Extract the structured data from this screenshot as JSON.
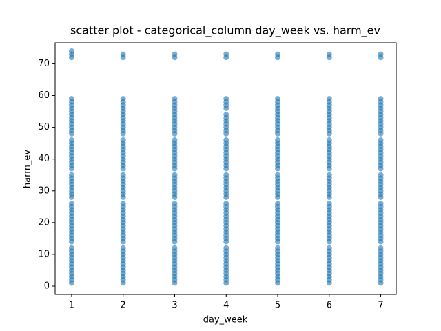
{
  "chart_data": {
    "type": "scatter",
    "title": "scatter plot - categorical_column day_week vs. harm_ev",
    "x_label": "day_week",
    "y_label": "harm_ev",
    "color": "#1f77b4",
    "xlim": [
      0.68,
      7.3
    ],
    "ylim": [
      -2.6,
      76.6
    ],
    "xticks": [
      1,
      2,
      3,
      4,
      5,
      6,
      7
    ],
    "yticks": [
      0,
      10,
      20,
      30,
      40,
      50,
      60,
      70
    ],
    "groups": [
      {
        "x": 1,
        "y": [
          1,
          2,
          3,
          4,
          5,
          6,
          7,
          8,
          9,
          10,
          11,
          12,
          14,
          15,
          16,
          17,
          18,
          19,
          20,
          21,
          22,
          23,
          24,
          25,
          26,
          28,
          29,
          30,
          31,
          32,
          33,
          34,
          35,
          37,
          38,
          39,
          40,
          41,
          42,
          43,
          44,
          45,
          46,
          48,
          49,
          50,
          51,
          52,
          53,
          54,
          55,
          56,
          57,
          58,
          59,
          72,
          73,
          74
        ]
      },
      {
        "x": 2,
        "y": [
          1,
          2,
          3,
          4,
          5,
          6,
          7,
          8,
          9,
          10,
          11,
          12,
          14,
          15,
          16,
          17,
          18,
          19,
          20,
          21,
          22,
          23,
          24,
          25,
          26,
          28,
          29,
          30,
          31,
          32,
          33,
          34,
          35,
          37,
          38,
          39,
          40,
          41,
          42,
          43,
          44,
          45,
          46,
          48,
          49,
          50,
          51,
          52,
          53,
          54,
          55,
          56,
          57,
          58,
          59,
          72,
          73
        ]
      },
      {
        "x": 3,
        "y": [
          1,
          2,
          3,
          4,
          5,
          6,
          7,
          8,
          9,
          10,
          11,
          12,
          14,
          15,
          16,
          17,
          18,
          19,
          20,
          21,
          22,
          23,
          24,
          25,
          26,
          28,
          29,
          30,
          31,
          32,
          33,
          34,
          35,
          37,
          38,
          39,
          40,
          41,
          42,
          43,
          44,
          45,
          46,
          48,
          49,
          50,
          51,
          52,
          53,
          54,
          55,
          56,
          57,
          58,
          59,
          72,
          73
        ]
      },
      {
        "x": 4,
        "y": [
          1,
          2,
          3,
          4,
          5,
          6,
          7,
          8,
          9,
          10,
          11,
          12,
          14,
          15,
          16,
          17,
          18,
          19,
          20,
          21,
          22,
          23,
          24,
          25,
          26,
          28,
          29,
          30,
          31,
          32,
          33,
          34,
          35,
          37,
          38,
          39,
          40,
          41,
          42,
          43,
          44,
          45,
          46,
          48,
          49,
          50,
          51,
          52,
          53,
          54,
          56,
          57,
          58,
          59,
          72,
          73
        ]
      },
      {
        "x": 5,
        "y": [
          1,
          2,
          3,
          4,
          5,
          6,
          7,
          8,
          9,
          10,
          11,
          12,
          14,
          15,
          16,
          17,
          18,
          19,
          20,
          21,
          22,
          23,
          24,
          25,
          26,
          28,
          29,
          30,
          31,
          32,
          33,
          34,
          35,
          37,
          38,
          39,
          40,
          41,
          42,
          43,
          44,
          45,
          46,
          48,
          49,
          50,
          51,
          52,
          53,
          54,
          55,
          56,
          57,
          58,
          59,
          72,
          73
        ]
      },
      {
        "x": 6,
        "y": [
          1,
          2,
          3,
          4,
          5,
          6,
          7,
          8,
          9,
          10,
          11,
          12,
          14,
          15,
          16,
          17,
          18,
          19,
          20,
          21,
          22,
          23,
          24,
          25,
          26,
          28,
          29,
          30,
          31,
          32,
          33,
          34,
          35,
          37,
          38,
          39,
          40,
          41,
          42,
          43,
          44,
          45,
          46,
          48,
          49,
          50,
          51,
          52,
          53,
          54,
          55,
          56,
          57,
          58,
          59,
          72,
          73
        ]
      },
      {
        "x": 7,
        "y": [
          1,
          2,
          3,
          4,
          5,
          6,
          7,
          8,
          9,
          10,
          11,
          12,
          14,
          15,
          16,
          17,
          18,
          19,
          20,
          21,
          22,
          23,
          24,
          25,
          26,
          28,
          29,
          30,
          31,
          32,
          33,
          34,
          35,
          37,
          38,
          39,
          40,
          41,
          42,
          43,
          44,
          45,
          46,
          48,
          49,
          50,
          51,
          52,
          53,
          54,
          55,
          56,
          57,
          58,
          59,
          72,
          73
        ]
      }
    ]
  }
}
